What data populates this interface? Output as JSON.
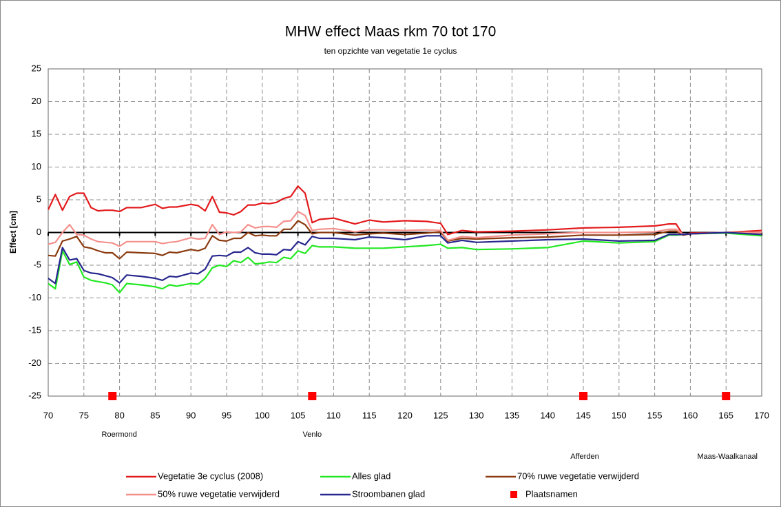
{
  "chart_data": {
    "type": "line",
    "title": "MHW effect Maas rkm 70 tot 170",
    "subtitle": "ten opzichte van vegetatie 1e cyclus",
    "y_label": "Effect [cm]",
    "xlim": [
      70,
      170
    ],
    "xticks": [
      70,
      75,
      80,
      85,
      90,
      95,
      100,
      105,
      110,
      115,
      120,
      125,
      130,
      135,
      140,
      145,
      150,
      155,
      160,
      165,
      170
    ],
    "ylim": [
      -25,
      25
    ],
    "yticks": [
      -25,
      -20,
      -15,
      -10,
      -5,
      0,
      5,
      10,
      15,
      20,
      25
    ],
    "grid": true,
    "x": [
      70,
      71,
      72,
      73,
      74,
      75,
      76,
      77,
      78,
      79,
      80,
      81,
      83,
      85,
      86,
      87,
      88,
      90,
      91,
      92,
      93,
      94,
      95,
      96,
      97,
      98,
      99,
      100,
      101,
      102,
      103,
      104,
      105,
      106,
      107,
      108,
      110,
      113,
      115,
      117,
      120,
      123,
      125,
      126,
      128,
      130,
      135,
      140,
      145,
      150,
      155,
      157,
      158,
      159,
      160,
      165,
      170
    ],
    "series": [
      {
        "name": "Vegetatie 3e cyclus (2008)",
        "color": "#e31a1c",
        "values": [
          3.5,
          5.8,
          3.4,
          5.5,
          6,
          6,
          3.8,
          3.3,
          3.4,
          3.4,
          3.2,
          3.8,
          3.8,
          4.3,
          3.7,
          3.9,
          3.9,
          4.3,
          4.1,
          3.3,
          5.5,
          3.1,
          3.0,
          2.7,
          3.2,
          4.2,
          4.2,
          4.5,
          4.4,
          4.6,
          5.2,
          5.5,
          7.1,
          6,
          1.5,
          2.0,
          2.2,
          1.3,
          1.9,
          1.6,
          1.8,
          1.7,
          1.4,
          -0.3,
          0.3,
          0.1,
          0.2,
          0.4,
          0.7,
          0.8,
          1.0,
          1.3,
          1.3,
          -0.4,
          -0.1,
          0.0,
          0.3
        ]
      },
      {
        "name": "Alles glad",
        "color": "#22e822",
        "values": [
          -7.8,
          -8.6,
          -2.8,
          -4.9,
          -4.5,
          -6.8,
          -7.3,
          -7.5,
          -7.7,
          -8.0,
          -9.2,
          -7.8,
          -8.0,
          -8.3,
          -8.6,
          -8.0,
          -8.2,
          -7.8,
          -7.9,
          -7.0,
          -5.4,
          -5.0,
          -5.2,
          -4.3,
          -4.6,
          -3.8,
          -4.8,
          -4.7,
          -4.5,
          -4.6,
          -3.8,
          -4.0,
          -2.8,
          -3.2,
          -2.0,
          -2.2,
          -2.2,
          -2.4,
          -2.4,
          -2.4,
          -2.2,
          -2.0,
          -1.8,
          -2.4,
          -2.3,
          -2.6,
          -2.5,
          -2.3,
          -1.3,
          -1.6,
          -1.4,
          -0.4,
          -0.4,
          -0.3,
          -0.2,
          -0.1,
          -0.5
        ]
      },
      {
        "name": "70% ruwe vegetatie verwijderd",
        "color": "#8b3a0f",
        "values": [
          -3.5,
          -3.6,
          -1.3,
          -1.0,
          -0.6,
          -2.2,
          -2.4,
          -2.8,
          -3.1,
          -3.1,
          -4.0,
          -3.0,
          -3.1,
          -3.2,
          -3.5,
          -3.0,
          -3.1,
          -2.6,
          -2.8,
          -2.4,
          -0.5,
          -1.2,
          -1.3,
          -0.9,
          -0.9,
          0.0,
          -0.5,
          -0.4,
          -0.5,
          -0.5,
          0.5,
          0.5,
          1.8,
          1.2,
          -0.2,
          0.0,
          0.0,
          -0.4,
          -0.2,
          -0.1,
          -0.3,
          -0.1,
          0.1,
          -1.3,
          -0.9,
          -1.0,
          -0.8,
          -0.7,
          -0.4,
          -0.4,
          -0.3,
          0.2,
          0.2,
          -0.4,
          -0.2,
          0.0,
          0.0
        ]
      },
      {
        "name": "50% ruwe vegetatie verwijderd",
        "color": "#f4908c",
        "values": [
          -1.8,
          -1.5,
          0,
          1.2,
          -0.3,
          -0.4,
          -1.0,
          -1.4,
          -1.5,
          -1.6,
          -2.1,
          -1.4,
          -1.4,
          -1.4,
          -1.7,
          -1.5,
          -1.4,
          -0.8,
          -1.0,
          -0.9,
          1.2,
          -0.3,
          0.1,
          0,
          0.1,
          1.2,
          0.7,
          0.9,
          0.9,
          0.8,
          1.7,
          1.8,
          3.2,
          2.6,
          0.3,
          0.5,
          0.6,
          0.1,
          0.4,
          0.4,
          0.3,
          0.4,
          0.3,
          -1.2,
          -0.6,
          -0.8,
          -0.4,
          -0.2,
          0.0,
          0.0,
          0.1,
          0.5,
          0.5,
          -0.3,
          -0.2,
          0.0,
          0.0
        ]
      },
      {
        "name": "Stroombanen glad",
        "color": "#27278f",
        "values": [
          -7,
          -7.8,
          -2.3,
          -4.2,
          -4.0,
          -5.8,
          -6.2,
          -6.3,
          -6.6,
          -6.9,
          -7.7,
          -6.5,
          -6.7,
          -7.0,
          -7.3,
          -6.7,
          -6.8,
          -6.2,
          -6.3,
          -5.6,
          -3.6,
          -3.5,
          -3.6,
          -3.0,
          -3.0,
          -2.3,
          -3.1,
          -3.3,
          -3.3,
          -3.4,
          -2.6,
          -2.7,
          -1.4,
          -1.9,
          -0.6,
          -0.9,
          -0.9,
          -1.1,
          -0.7,
          -0.8,
          -1.1,
          -0.5,
          -0.5,
          -1.6,
          -1.2,
          -1.5,
          -1.3,
          -1.1,
          -1.0,
          -1.3,
          -1.2,
          -0.3,
          -0.3,
          -0.3,
          -0.2,
          0.0,
          -0.3
        ]
      }
    ],
    "places": {
      "name": "Plaatsnamen",
      "color": "#ff0000",
      "x": [
        79,
        107,
        145,
        165
      ],
      "values": [
        -25,
        -25,
        -25,
        -25
      ],
      "labels": [
        "Roermond",
        "Venlo",
        "Afferden",
        "Maas-Waalkanaal"
      ]
    }
  }
}
